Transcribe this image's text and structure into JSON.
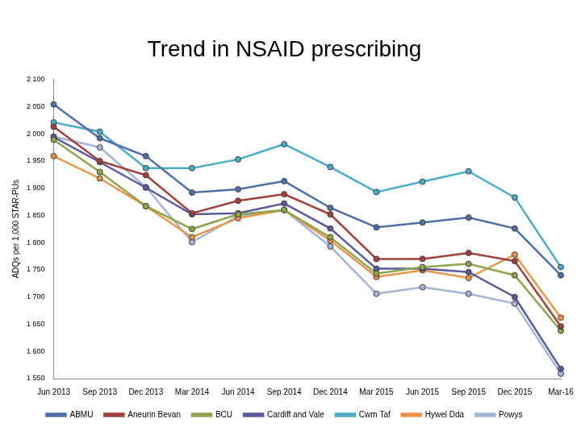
{
  "chart_data": {
    "type": "line",
    "title": "Trend in NSAID prescribing",
    "y_label": "ADQs per 1,000 STAR-PUs",
    "categories": [
      "Jun 2013",
      "Sep 2013",
      "Dec 2013",
      "Mar 2014",
      "Jun 2014",
      "Sep 2014",
      "Dec 2014",
      "Mar 2015",
      "Jun 2015",
      "Sep 2015",
      "Dec 2015",
      "Mar-16"
    ],
    "series": [
      {
        "name": "ABMU",
        "color": "#4F6FA8",
        "values": [
          2054,
          1992,
          1959,
          1892,
          1898,
          1913,
          1864,
          1828,
          1837,
          1846,
          1826,
          1740
        ]
      },
      {
        "name": "Aneurin Bevan",
        "color": "#A0413C",
        "values": [
          2013,
          1950,
          1924,
          1854,
          1877,
          1889,
          1852,
          1770,
          1770,
          1781,
          1766,
          1646
        ]
      },
      {
        "name": "BCU",
        "color": "#8EA54D",
        "values": [
          1989,
          1930,
          1867,
          1825,
          1852,
          1860,
          1810,
          1743,
          1755,
          1761,
          1740,
          1638
        ]
      },
      {
        "name": "Cardiff and Vale",
        "color": "#5B5A9C",
        "values": [
          1994,
          1948,
          1901,
          1852,
          1854,
          1872,
          1826,
          1752,
          1752,
          1746,
          1700,
          1568
        ]
      },
      {
        "name": "Cwm Taf",
        "color": "#4BACC6",
        "values": [
          2021,
          2004,
          1937,
          1937,
          1953,
          1981,
          1939,
          1893,
          1912,
          1931,
          1883,
          1755
        ]
      },
      {
        "name": "Hywel Dda",
        "color": "#E8954A",
        "values": [
          1959,
          1918,
          1867,
          1810,
          1845,
          1860,
          1804,
          1737,
          1749,
          1735,
          1778,
          1662
        ]
      },
      {
        "name": "Powys",
        "color": "#A3B4D6",
        "values": [
          1995,
          1975,
          1902,
          1801,
          1849,
          1860,
          1793,
          1706,
          1718,
          1706,
          1688,
          1559
        ]
      }
    ],
    "ylim": [
      1550,
      2100
    ],
    "yticks": [
      {
        "value": 1550,
        "label": "1 550"
      },
      {
        "value": 1600,
        "label": "1 600"
      },
      {
        "value": 1650,
        "label": "1 650"
      },
      {
        "value": 1700,
        "label": "1 700"
      },
      {
        "value": 1750,
        "label": "1 750"
      },
      {
        "value": 1800,
        "label": "1 800"
      },
      {
        "value": 1850,
        "label": "1 850"
      },
      {
        "value": 1900,
        "label": "1 900"
      },
      {
        "value": 1950,
        "label": "1 950"
      },
      {
        "value": 2000,
        "label": "2 000"
      },
      {
        "value": 2050,
        "label": "2 050"
      },
      {
        "value": 2100,
        "label": "2 100"
      }
    ],
    "grid": false,
    "legend": "bottom",
    "marker": "circle"
  }
}
